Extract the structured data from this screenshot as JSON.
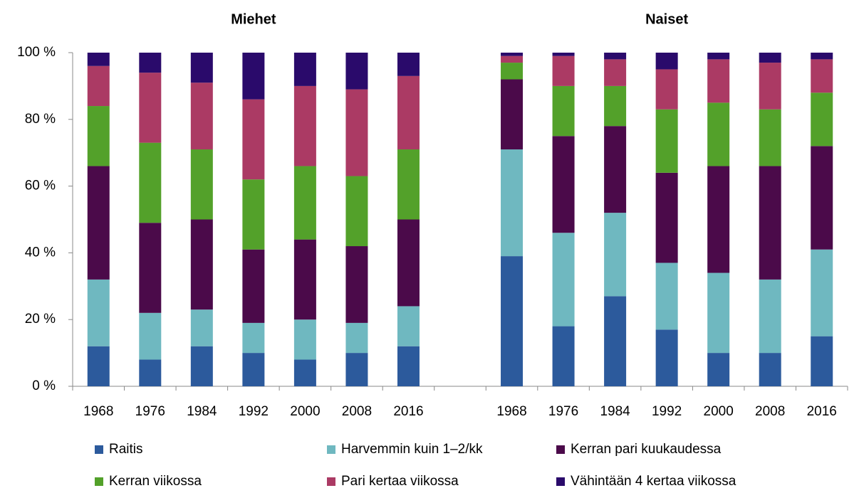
{
  "chart_data": {
    "type": "stacked-bar",
    "groups": [
      "Miehet",
      "Naiset"
    ],
    "categories": [
      "1968",
      "1976",
      "1984",
      "1992",
      "2000",
      "2008",
      "2016",
      null,
      "1968",
      "1976",
      "1984",
      "1992",
      "2000",
      "2008",
      "2016"
    ],
    "series": [
      {
        "name": "Raitis",
        "color": "#2c5a9c",
        "values": [
          12,
          8,
          12,
          10,
          8,
          10,
          12,
          null,
          39,
          18,
          27,
          17,
          10,
          10,
          15
        ]
      },
      {
        "name": "Harvemmin kuin 1–2/kk",
        "color": "#6fb8c0",
        "values": [
          20,
          14,
          11,
          9,
          12,
          9,
          12,
          null,
          32,
          28,
          25,
          20,
          24,
          22,
          26
        ]
      },
      {
        "name": "Kerran pari kuukaudessa",
        "color": "#4b0a4a",
        "values": [
          34,
          27,
          27,
          22,
          24,
          23,
          26,
          null,
          21,
          29,
          26,
          27,
          32,
          34,
          31
        ]
      },
      {
        "name": "Kerran viikossa",
        "color": "#53a12a",
        "values": [
          18,
          24,
          21,
          21,
          22,
          21,
          21,
          null,
          5,
          15,
          12,
          19,
          19,
          17,
          16
        ]
      },
      {
        "name": "Pari kertaa viikossa",
        "color": "#ab3a64",
        "values": [
          12,
          21,
          20,
          24,
          24,
          26,
          22,
          null,
          2,
          9,
          8,
          12,
          13,
          14,
          10
        ]
      },
      {
        "name": "Vähintään 4 kertaa viikossa",
        "color": "#2a0a6b",
        "values": [
          4,
          6,
          9,
          14,
          10,
          11,
          7,
          null,
          1,
          1,
          2,
          5,
          2,
          3,
          2
        ]
      }
    ],
    "ylim": [
      0,
      100
    ],
    "yticks": [
      {
        "value": 0,
        "label": "0 %"
      },
      {
        "value": 20,
        "label": "20 %"
      },
      {
        "value": 40,
        "label": "40 %"
      },
      {
        "value": 60,
        "label": "60 %"
      },
      {
        "value": 80,
        "label": "80 %"
      },
      {
        "value": 100,
        "label": "100 %"
      }
    ],
    "grid": false
  }
}
